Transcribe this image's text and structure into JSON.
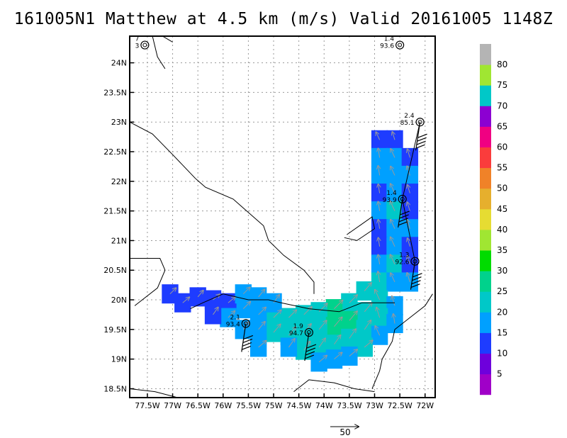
{
  "title": "161005N1 Matthew at 4.5 km (m/s) Valid 20161005 1148Z",
  "chart_data": {
    "type": "heatmap",
    "title": "161005N1 Matthew at 4.5 km (m/s) Valid 20161005 1148Z",
    "xlim": [
      -77.85,
      -71.8
    ],
    "ylim": [
      18.35,
      24.45
    ],
    "x_ticks": [
      {
        "value": -77.5,
        "label": "77.5W"
      },
      {
        "value": -77.0,
        "label": "77W"
      },
      {
        "value": -76.5,
        "label": "76.5W"
      },
      {
        "value": -76.0,
        "label": "76W"
      },
      {
        "value": -75.5,
        "label": "75.5W"
      },
      {
        "value": -75.0,
        "label": "75W"
      },
      {
        "value": -74.5,
        "label": "74.5W"
      },
      {
        "value": -74.0,
        "label": "74W"
      },
      {
        "value": -73.5,
        "label": "73.5W"
      },
      {
        "value": -73.0,
        "label": "73W"
      },
      {
        "value": -72.5,
        "label": "72.5W"
      },
      {
        "value": -72.0,
        "label": "72W"
      }
    ],
    "y_ticks": [
      {
        "value": 18.5,
        "label": "18.5N"
      },
      {
        "value": 19.0,
        "label": "19N"
      },
      {
        "value": 19.5,
        "label": "19.5N"
      },
      {
        "value": 20.0,
        "label": "20N"
      },
      {
        "value": 20.5,
        "label": "20.5N"
      },
      {
        "value": 21.0,
        "label": "21N"
      },
      {
        "value": 21.5,
        "label": "21.5N"
      },
      {
        "value": 22.0,
        "label": "22N"
      },
      {
        "value": 22.5,
        "label": "22.5N"
      },
      {
        "value": 23.0,
        "label": "23N"
      },
      {
        "value": 23.5,
        "label": "23.5N"
      },
      {
        "value": 24.0,
        "label": "24N"
      }
    ],
    "grid": true,
    "colorbar": {
      "labels": [
        "5",
        "10",
        "15",
        "20",
        "25",
        "30",
        "35",
        "40",
        "45",
        "50",
        "55",
        "60",
        "65",
        "70",
        "75",
        "80"
      ],
      "colors": [
        "#a000c8",
        "#6e00dc",
        "#1e3cff",
        "#00a0ff",
        "#00c8c8",
        "#00d28c",
        "#00dc00",
        "#a0e632",
        "#e6dc32",
        "#e6af2d",
        "#f08228",
        "#fa3c3c",
        "#f00082",
        "#8c00d2",
        "#00c8c8",
        "#a0e632",
        "#b4b4b4"
      ]
    },
    "band_cells": [
      {
        "x": -72.9,
        "y": 22.7,
        "speed": 12
      },
      {
        "x": -72.6,
        "y": 22.7,
        "speed": 11
      },
      {
        "x": -72.9,
        "y": 22.4,
        "speed": 15
      },
      {
        "x": -72.6,
        "y": 22.4,
        "speed": 16
      },
      {
        "x": -72.3,
        "y": 22.4,
        "speed": 13
      },
      {
        "x": -72.9,
        "y": 22.1,
        "speed": 16
      },
      {
        "x": -72.6,
        "y": 22.1,
        "speed": 17
      },
      {
        "x": -72.3,
        "y": 22.1,
        "speed": 16
      },
      {
        "x": -72.9,
        "y": 21.8,
        "speed": 14
      },
      {
        "x": -72.6,
        "y": 21.8,
        "speed": 19
      },
      {
        "x": -72.3,
        "y": 21.8,
        "speed": 12
      },
      {
        "x": -72.9,
        "y": 21.5,
        "speed": 15
      },
      {
        "x": -72.6,
        "y": 21.5,
        "speed": 21
      },
      {
        "x": -72.3,
        "y": 21.5,
        "speed": 14
      },
      {
        "x": -72.9,
        "y": 21.2,
        "speed": 14
      },
      {
        "x": -72.6,
        "y": 21.2,
        "speed": 18
      },
      {
        "x": -72.3,
        "y": 21.2,
        "speed": 15
      },
      {
        "x": -72.9,
        "y": 20.9,
        "speed": 13
      },
      {
        "x": -72.6,
        "y": 20.9,
        "speed": 19
      },
      {
        "x": -72.3,
        "y": 20.9,
        "speed": 12
      },
      {
        "x": -72.9,
        "y": 20.6,
        "speed": 16
      },
      {
        "x": -72.6,
        "y": 20.6,
        "speed": 20
      },
      {
        "x": -72.3,
        "y": 20.6,
        "speed": 13
      },
      {
        "x": -72.9,
        "y": 20.3,
        "speed": 20
      },
      {
        "x": -72.6,
        "y": 20.3,
        "speed": 17
      },
      {
        "x": -72.3,
        "y": 20.3,
        "speed": 16
      },
      {
        "x": -73.2,
        "y": 20.15,
        "speed": 20
      },
      {
        "x": -72.9,
        "y": 20.0,
        "speed": 22
      },
      {
        "x": -72.6,
        "y": 19.9,
        "speed": 18
      },
      {
        "x": -73.5,
        "y": 19.95,
        "speed": 22
      },
      {
        "x": -73.2,
        "y": 19.8,
        "speed": 24
      },
      {
        "x": -72.9,
        "y": 19.7,
        "speed": 20
      },
      {
        "x": -72.6,
        "y": 19.6,
        "speed": 16
      },
      {
        "x": -73.8,
        "y": 19.85,
        "speed": 25
      },
      {
        "x": -73.5,
        "y": 19.65,
        "speed": 26
      },
      {
        "x": -73.2,
        "y": 19.5,
        "speed": 22
      },
      {
        "x": -72.9,
        "y": 19.4,
        "speed": 19
      },
      {
        "x": -74.1,
        "y": 19.8,
        "speed": 24
      },
      {
        "x": -73.8,
        "y": 19.55,
        "speed": 26
      },
      {
        "x": -73.5,
        "y": 19.35,
        "speed": 23
      },
      {
        "x": -73.2,
        "y": 19.2,
        "speed": 20
      },
      {
        "x": -74.4,
        "y": 19.75,
        "speed": 22
      },
      {
        "x": -74.1,
        "y": 19.5,
        "speed": 24
      },
      {
        "x": -73.8,
        "y": 19.25,
        "speed": 22
      },
      {
        "x": -73.5,
        "y": 19.05,
        "speed": 19
      },
      {
        "x": -74.7,
        "y": 19.7,
        "speed": 21
      },
      {
        "x": -74.4,
        "y": 19.45,
        "speed": 22
      },
      {
        "x": -74.1,
        "y": 19.2,
        "speed": 21
      },
      {
        "x": -73.8,
        "y": 19.0,
        "speed": 18
      },
      {
        "x": -75.0,
        "y": 19.7,
        "speed": 20
      },
      {
        "x": -74.7,
        "y": 19.4,
        "speed": 21
      },
      {
        "x": -74.4,
        "y": 19.15,
        "speed": 20
      },
      {
        "x": -74.1,
        "y": 18.95,
        "speed": 18
      },
      {
        "x": -75.3,
        "y": 19.75,
        "speed": 19
      },
      {
        "x": -75.0,
        "y": 19.45,
        "speed": 20
      },
      {
        "x": -74.7,
        "y": 19.2,
        "speed": 19
      },
      {
        "x": -75.3,
        "y": 19.2,
        "speed": 18
      },
      {
        "x": -75.6,
        "y": 19.85,
        "speed": 17
      },
      {
        "x": -75.3,
        "y": 19.5,
        "speed": 18
      },
      {
        "x": -75.6,
        "y": 19.5,
        "speed": 16
      },
      {
        "x": -75.9,
        "y": 19.95,
        "speed": 14
      },
      {
        "x": -75.6,
        "y": 20.1,
        "speed": 15
      },
      {
        "x": -75.3,
        "y": 20.05,
        "speed": 16
      },
      {
        "x": -75.0,
        "y": 19.95,
        "speed": 17
      },
      {
        "x": -76.2,
        "y": 20.0,
        "speed": 12
      },
      {
        "x": -75.9,
        "y": 19.7,
        "speed": 15
      },
      {
        "x": -76.5,
        "y": 20.05,
        "speed": 11
      },
      {
        "x": -76.2,
        "y": 19.75,
        "speed": 13
      },
      {
        "x": -76.8,
        "y": 19.95,
        "speed": 12
      },
      {
        "x": -77.05,
        "y": 20.1,
        "speed": 11
      }
    ],
    "wind_vectors_note": "gray arrows",
    "vector_scale_label": "50",
    "centers": [
      {
        "lon": -77.55,
        "lat": 24.3,
        "label_top": "7",
        "label_bottom": "3"
      },
      {
        "lon": -72.5,
        "lat": 24.3,
        "label_top": "1.4",
        "label_bottom": "93.6"
      },
      {
        "lon": -72.1,
        "lat": 23.0,
        "label_top": "2.4",
        "label_bottom": "85.1"
      },
      {
        "lon": -72.45,
        "lat": 21.7,
        "label_top": "1.4",
        "label_bottom": "93.9"
      },
      {
        "lon": -72.2,
        "lat": 20.65,
        "label_top": "1.3",
        "label_bottom": "92.6"
      },
      {
        "lon": -74.3,
        "lat": 19.45,
        "label_top": "1.9",
        "label_bottom": "94.7"
      },
      {
        "lon": -75.55,
        "lat": 19.6,
        "label_top": "2.1",
        "label_bottom": "93.4"
      }
    ],
    "coastlines": [
      [
        [
          -77.85,
          23.0
        ],
        [
          -77.4,
          22.8
        ],
        [
          -77.0,
          22.45
        ],
        [
          -76.55,
          22.05
        ],
        [
          -76.35,
          21.9
        ],
        [
          -75.8,
          21.7
        ],
        [
          -75.6,
          21.55
        ],
        [
          -75.2,
          21.25
        ],
        [
          -75.1,
          21.0
        ],
        [
          -74.8,
          20.75
        ],
        [
          -74.4,
          20.5
        ],
        [
          -74.2,
          20.3
        ],
        [
          -74.2,
          20.1
        ]
      ],
      [
        [
          -77.85,
          20.7
        ],
        [
          -77.25,
          20.7
        ],
        [
          -77.15,
          20.5
        ],
        [
          -77.3,
          20.2
        ],
        [
          -77.6,
          20.0
        ],
        [
          -77.75,
          19.9
        ]
      ],
      [
        [
          -73.6,
          21.05
        ],
        [
          -73.35,
          21.0
        ],
        [
          -73.0,
          21.2
        ],
        [
          -73.05,
          21.4
        ],
        [
          -73.55,
          21.1
        ]
      ],
      [
        [
          -72.6,
          19.95
        ],
        [
          -72.8,
          19.95
        ],
        [
          -73.25,
          19.95
        ],
        [
          -73.7,
          19.8
        ],
        [
          -74.3,
          19.85
        ],
        [
          -74.85,
          19.95
        ],
        [
          -75.1,
          20.0
        ],
        [
          -75.5,
          20.0
        ],
        [
          -76.0,
          20.1
        ],
        [
          -76.4,
          19.95
        ],
        [
          -76.65,
          19.85
        ]
      ],
      [
        [
          -71.85,
          20.1
        ],
        [
          -72.0,
          19.9
        ],
        [
          -72.3,
          19.7
        ],
        [
          -72.6,
          19.5
        ],
        [
          -72.65,
          19.3
        ],
        [
          -72.85,
          19.0
        ],
        [
          -72.9,
          18.8
        ],
        [
          -73.05,
          18.5
        ]
      ],
      [
        [
          -74.6,
          18.45
        ],
        [
          -74.3,
          18.65
        ],
        [
          -73.8,
          18.6
        ],
        [
          -73.4,
          18.5
        ],
        [
          -73.0,
          18.45
        ]
      ],
      [
        [
          -77.85,
          18.5
        ],
        [
          -77.35,
          18.45
        ],
        [
          -76.9,
          18.35
        ]
      ],
      [
        [
          -77.4,
          24.45
        ],
        [
          -77.3,
          24.1
        ],
        [
          -77.15,
          23.9
        ]
      ],
      [
        [
          -77.2,
          24.45
        ],
        [
          -77.0,
          24.35
        ]
      ]
    ]
  }
}
